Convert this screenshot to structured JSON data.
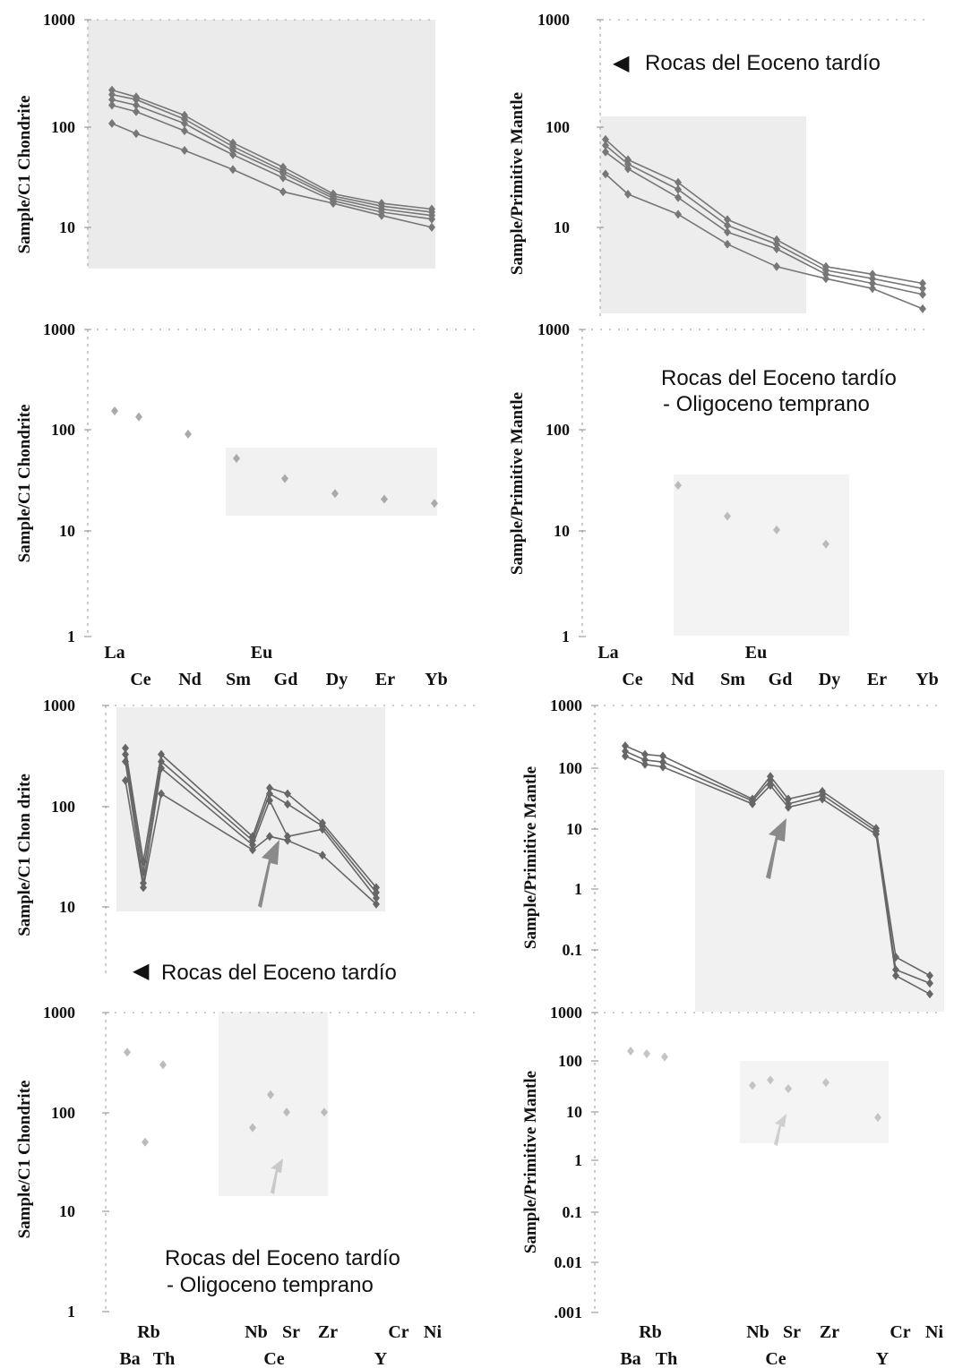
{
  "chart_data": [
    {
      "type": "line",
      "scale": "log",
      "ylabel": "Sample/C1 Chondrite",
      "y_ticks": [
        "1000",
        "100",
        "10"
      ],
      "ylim": [
        4,
        1000
      ],
      "categories": [
        "La",
        "Ce",
        "Nd",
        "Sm",
        "Eu",
        "Gd",
        "Dy",
        "Er",
        "Yb"
      ],
      "series": [
        {
          "values": [
            210,
            180,
            120,
            65,
            null,
            38,
            21,
            17,
            15
          ]
        },
        {
          "values": [
            190,
            170,
            110,
            60,
            null,
            35,
            20,
            16,
            14
          ]
        },
        {
          "values": [
            170,
            150,
            100,
            55,
            null,
            33,
            19,
            15,
            13
          ]
        },
        {
          "values": [
            150,
            130,
            85,
            50,
            null,
            30,
            18,
            14,
            12
          ]
        },
        {
          "values": [
            100,
            80,
            55,
            36,
            null,
            22,
            17,
            13,
            10
          ]
        }
      ],
      "title": ""
    },
    {
      "type": "line",
      "scale": "log",
      "ylabel": "Sample/Primitive Mantle",
      "y_ticks": [
        "1000",
        "100",
        "10"
      ],
      "ylim": [
        2.5,
        1000
      ],
      "categories": [
        "La",
        "Ce",
        "Nd",
        "Sm",
        "Eu",
        "Gd",
        "Dy",
        "Er",
        "Yb"
      ],
      "series": [
        {
          "values": [
            90,
            60,
            38,
            18,
            null,
            12,
            7,
            6,
            5
          ]
        },
        {
          "values": [
            80,
            55,
            33,
            16,
            null,
            11,
            6.5,
            5.5,
            4.5
          ]
        },
        {
          "values": [
            70,
            50,
            28,
            14,
            null,
            10,
            6,
            5,
            4
          ]
        },
        {
          "values": [
            45,
            30,
            20,
            11,
            null,
            7,
            5.5,
            4.5,
            3
          ]
        }
      ],
      "legend": [
        {
          "symbol": "◀",
          "label": "Rocas del Eoceno tardío"
        }
      ],
      "title": ""
    },
    {
      "type": "scatter",
      "scale": "log",
      "ylabel": "Sample/C1 Chondrite",
      "y_ticks": [
        "1000",
        "100",
        "10",
        "1"
      ],
      "ylim": [
        1,
        1000
      ],
      "categories": [
        "La",
        "Ce",
        "Nd",
        "Sm",
        "Eu",
        "Gd",
        "Dy",
        "Er",
        "Yb"
      ],
      "series": [
        {
          "values": [
            160,
            140,
            95,
            55,
            null,
            35,
            25,
            22,
            20
          ]
        }
      ],
      "x_labels_row1": [
        "La",
        "Eu"
      ],
      "x_labels_row2": [
        "Ce",
        "Nd",
        "Sm",
        "Gd",
        "Dy",
        "Er",
        "Yb"
      ],
      "title": ""
    },
    {
      "type": "scatter",
      "scale": "log",
      "ylabel": "Sample/Primitive Mantle",
      "y_ticks": [
        "1000",
        "100",
        "10",
        "1"
      ],
      "ylim": [
        1,
        1000
      ],
      "categories": [
        "La",
        "Ce",
        "Nd",
        "Sm",
        "Eu",
        "Gd",
        "Dy",
        "Er",
        "Yb"
      ],
      "series": [
        {
          "values": [
            null,
            null,
            30,
            15,
            null,
            11,
            8,
            null,
            null
          ]
        }
      ],
      "legend": [
        {
          "label": "Rocas del Eoceno tardío"
        },
        {
          "label": "- Oligoceno temprano"
        }
      ],
      "x_labels_row1": [
        "La",
        "Eu"
      ],
      "x_labels_row2": [
        "Ce",
        "Nd",
        "Sm",
        "Gd",
        "Dy",
        "Er",
        "Yb"
      ],
      "title": ""
    },
    {
      "type": "line",
      "scale": "log",
      "ylabel": "Sample/C1 Chon drite",
      "y_ticks": [
        "1000",
        "100",
        "10"
      ],
      "ylim": [
        3,
        1000
      ],
      "categories": [
        "Rb",
        "Ba",
        "Th",
        "Nb",
        "Ce",
        "Sr",
        "Zr",
        "Y",
        "Cr",
        "Ni"
      ],
      "series": [
        {
          "values": [
            400,
            35,
            350,
            60,
            170,
            150,
            80,
            null,
            20,
            null
          ]
        },
        {
          "values": [
            350,
            28,
            300,
            55,
            150,
            120,
            75,
            null,
            18,
            null
          ]
        },
        {
          "values": [
            300,
            22,
            260,
            50,
            130,
            60,
            70,
            null,
            16,
            null
          ]
        },
        {
          "values": [
            200,
            20,
            150,
            45,
            60,
            55,
            40,
            null,
            14,
            null
          ]
        }
      ],
      "legend": [
        {
          "symbol": "◀",
          "label": "Rocas del Eoceno tardío"
        }
      ],
      "title": ""
    },
    {
      "type": "line",
      "scale": "log",
      "ylabel": "Sample/Primitive Mantle",
      "y_ticks": [
        "1000",
        "100",
        "10",
        "1",
        "0.1"
      ],
      "ylim": [
        0.01,
        1000
      ],
      "categories": [
        "Rb",
        "Ba",
        "Th",
        "Nb",
        "Ce",
        "Sr",
        "Zr",
        "Y",
        "Cr",
        "Ni"
      ],
      "series": [
        {
          "values": [
            220,
            160,
            150,
            30,
            70,
            30,
            40,
            10,
            0.08,
            0.04
          ]
        },
        {
          "values": [
            180,
            130,
            120,
            28,
            60,
            25,
            35,
            9,
            0.05,
            0.03
          ]
        },
        {
          "values": [
            150,
            110,
            100,
            25,
            50,
            22,
            30,
            8,
            0.04,
            0.02
          ]
        }
      ],
      "title": ""
    },
    {
      "type": "scatter",
      "scale": "log",
      "ylabel": "Sample/C1 Chondrite",
      "y_ticks": [
        "1000",
        "100",
        "10",
        "1"
      ],
      "ylim": [
        1,
        1000
      ],
      "categories": [
        "Rb",
        "Ba",
        "Th",
        "Nb",
        "Ce",
        "Sr",
        "Zr",
        "Y",
        "Cr",
        "Ni"
      ],
      "series": [
        {
          "values": [
            400,
            50,
            300,
            70,
            150,
            100,
            100,
            null,
            null,
            null
          ]
        }
      ],
      "legend": [
        {
          "label": "Rocas del Eoceno tardío"
        },
        {
          "label": "- Oligoceno temprano"
        }
      ],
      "x_labels_row1": [
        "Rb",
        "Nb",
        "Sr",
        "Zr",
        "Cr",
        "Ni"
      ],
      "x_labels_row2": [
        "Ba",
        "Th",
        "Ce",
        "Y"
      ],
      "title": ""
    },
    {
      "type": "scatter",
      "scale": "log",
      "ylabel": "Sample/Primitive Mantle",
      "y_ticks": [
        "1000",
        "100",
        "10",
        "1",
        "0.1",
        "0.01",
        ".001"
      ],
      "ylim": [
        0.001,
        1000
      ],
      "categories": [
        "Rb",
        "Ba",
        "Th",
        "Nb",
        "Ce",
        "Sr",
        "Zr",
        "Y",
        "Cr",
        "Ni"
      ],
      "series": [
        {
          "values": [
            170,
            150,
            130,
            35,
            45,
            30,
            40,
            8,
            null,
            null
          ]
        }
      ],
      "x_labels_row1": [
        "Rb",
        "Nb",
        "Sr",
        "Zr",
        "Cr",
        "Ni"
      ],
      "x_labels_row2": [
        "Ba",
        "Th",
        "Ce",
        "Y"
      ],
      "title": ""
    }
  ]
}
